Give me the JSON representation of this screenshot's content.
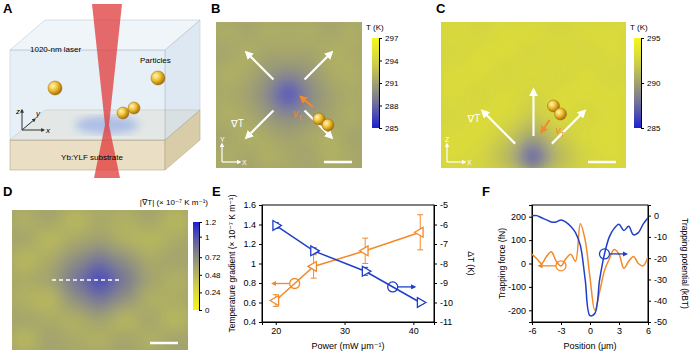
{
  "chart_data": [
    {
      "title": "A",
      "type": "diagram",
      "labels": [
        "1020-nm laser",
        "Particles",
        "Yb:YLF substrate"
      ],
      "axes_labels": [
        "z",
        "y",
        "x"
      ]
    },
    {
      "title": "B",
      "type": "heatmap",
      "cells": [
        [
          292,
          291,
          292,
          291.5,
          292,
          291,
          292
        ],
        [
          291,
          292,
          291,
          291.5,
          291,
          292,
          291.5
        ],
        [
          292,
          291.5,
          290.5,
          289.5,
          290.5,
          291.5,
          292
        ],
        [
          291.5,
          291,
          289.5,
          285,
          289.5,
          291,
          291.5
        ],
        [
          292,
          291.5,
          290.5,
          289.5,
          290.5,
          291,
          292
        ],
        [
          291,
          292,
          291.5,
          291,
          291.5,
          292,
          291
        ],
        [
          292,
          291,
          292,
          291.5,
          291,
          292,
          291.5
        ]
      ],
      "colorbar_label": "T (K)",
      "colorbar_range": [
        285,
        297
      ],
      "colorbar_ticks": [
        297,
        294,
        291,
        288,
        285
      ],
      "annotations": [
        "∇T",
        "vT"
      ],
      "axes_labels": [
        "X",
        "Y"
      ]
    },
    {
      "title": "C",
      "type": "heatmap",
      "cells": [
        [
          293,
          292.5,
          293,
          293,
          292.5,
          293,
          293
        ],
        [
          292.5,
          293,
          293,
          292.5,
          293,
          292.5,
          293
        ],
        [
          293,
          293,
          292.5,
          293,
          292.5,
          293,
          292.5
        ],
        [
          293,
          292.5,
          293,
          292.5,
          293,
          293,
          293
        ],
        [
          292.5,
          293,
          293,
          292,
          293,
          292.5,
          293
        ],
        [
          293,
          293,
          292,
          290,
          292,
          293,
          293
        ],
        [
          293,
          292.5,
          291,
          286,
          291,
          292.5,
          293
        ]
      ],
      "colorbar_label": "T (K)",
      "colorbar_range": [
        285,
        295
      ],
      "colorbar_ticks": [
        295,
        290,
        285
      ],
      "annotations": [
        "∇T",
        "vT"
      ],
      "axes_labels": [
        "X",
        "Z"
      ]
    },
    {
      "title": "D",
      "type": "heatmap",
      "cells": [
        [
          0.5,
          0.6,
          0.45,
          0.55,
          0.5,
          0.6,
          0.45
        ],
        [
          0.6,
          0.45,
          0.55,
          0.6,
          0.5,
          0.45,
          0.55
        ],
        [
          0.45,
          0.55,
          0.7,
          0.85,
          0.7,
          0.55,
          0.6
        ],
        [
          0.55,
          0.6,
          0.85,
          1.1,
          0.85,
          0.6,
          0.5
        ],
        [
          0.5,
          0.45,
          0.7,
          0.85,
          0.7,
          0.5,
          0.55
        ],
        [
          0.6,
          0.55,
          0.5,
          0.6,
          0.45,
          0.6,
          0.45
        ],
        [
          0.45,
          0.6,
          0.55,
          0.5,
          0.6,
          0.5,
          0.6
        ]
      ],
      "colorbar_label": "|∇T| (× 10⁻⁷ K m⁻¹)",
      "colorbar_range": [
        0,
        1.2
      ],
      "colorbar_ticks": [
        1.2,
        1,
        0.72,
        0.48,
        0.24,
        0
      ]
    },
    {
      "title": "E",
      "type": "line",
      "x": [
        20,
        25.5,
        33,
        41
      ],
      "xlim": [
        18,
        43
      ],
      "xticks": [
        20,
        30,
        40
      ],
      "ylim": [
        0.4,
        1.6
      ],
      "yticks": [
        0.4,
        0.6,
        0.8,
        1,
        1.2,
        1.4,
        1.6
      ],
      "y2lim": [
        -11,
        -5
      ],
      "y2ticks": [
        -11,
        -10,
        -9,
        -8,
        -7,
        -6,
        -5
      ],
      "x_label": "Power (mW μm⁻¹)",
      "y_label": "Temperature gradient (× 10⁻⁷ K m⁻¹)",
      "y2_label": "ΔT (K)",
      "series": [
        {
          "color": "#f28a2a",
          "values": [
            0.62,
            0.97,
            1.13,
            1.32
          ],
          "error": [
            0.06,
            0.12,
            0.13,
            0.18
          ],
          "marker": "triangle-left",
          "line_style": "solid"
        },
        {
          "color": "#1f3fc8",
          "values": [
            -6.05,
            -7.35,
            -8.4,
            -10
          ],
          "error": [
            0.15,
            0.15,
            0.2,
            0.1
          ],
          "marker": "triangle-right",
          "line_style": "solid",
          "axis": "y2"
        }
      ]
    },
    {
      "title": "F",
      "type": "line",
      "x": [
        -6,
        -5.5,
        -5,
        -4.5,
        -4,
        -3.5,
        -3,
        -2.5,
        -2,
        -1.5,
        -1,
        -0.5,
        0,
        0.5,
        1,
        1.5,
        2,
        2.5,
        3,
        3.5,
        4,
        4.5,
        5,
        5.5,
        6
      ],
      "xlim": [
        -6,
        6
      ],
      "xticks": [
        -6,
        -3,
        0,
        3,
        6
      ],
      "ylim": [
        -250,
        250
      ],
      "yticks": [
        -200,
        -100,
        0,
        100,
        200
      ],
      "y2lim": [
        -50,
        5
      ],
      "y2ticks": [
        -50,
        -40,
        -30,
        -20,
        -10,
        0
      ],
      "x_label": "Position (μm)",
      "y_label": "Trapping force (fN)",
      "y2_label": "Trapping potential (kBT)",
      "series": [
        {
          "color": "#f28a2a",
          "values": [
            40,
            20,
            0,
            30,
            50,
            10,
            -10,
            20,
            40,
            10,
            170,
            100,
            -60,
            -200,
            -120,
            -30,
            20,
            60,
            40,
            -20,
            10,
            30,
            0,
            -10,
            30
          ],
          "line_style": "solid"
        },
        {
          "color": "#1f3fc8",
          "values": [
            0,
            0,
            -1,
            -2,
            -3,
            -3,
            -2,
            -3,
            -5,
            -8,
            -14,
            -30,
            -47,
            -46,
            -30,
            -18,
            -10,
            -6,
            -4,
            -7,
            -5,
            -9,
            -8,
            -4,
            -1
          ],
          "line_style": "solid",
          "axis": "y2"
        }
      ]
    }
  ]
}
